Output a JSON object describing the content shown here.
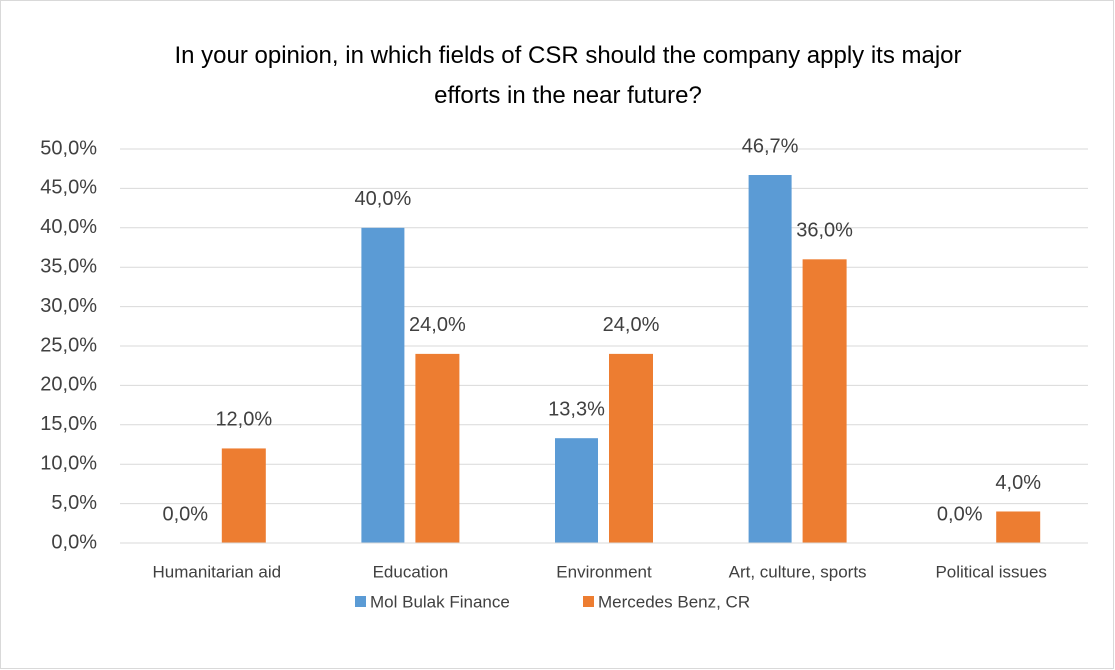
{
  "chart_data": {
    "type": "bar",
    "title": "In your opinion, in which fields of CSR should the company apply its major efforts in the near future?",
    "categories": [
      "Humanitarian aid",
      "Education",
      "Environment",
      "Art, culture, sports",
      "Political issues"
    ],
    "series": [
      {
        "name": "Mol Bulak Finance",
        "color": "#5b9bd5",
        "values": [
          0,
          40,
          13.3,
          46.7,
          0
        ],
        "value_labels": [
          "0,0%",
          "40,0%",
          "13,3%",
          "46,7%",
          "0,0%"
        ]
      },
      {
        "name": "Mercedes Benz, CR",
        "color": "#ed7d31",
        "values": [
          12,
          24,
          24,
          36,
          4
        ],
        "value_labels": [
          "12,0%",
          "24,0%",
          "24,0%",
          "36,0%",
          "4,0%"
        ]
      }
    ],
    "ylim": [
      0,
      50
    ],
    "yticks": [
      {
        "value": 0,
        "label": "0,0%"
      },
      {
        "value": 5,
        "label": "5,0%"
      },
      {
        "value": 10,
        "label": "10,0%"
      },
      {
        "value": 15,
        "label": "15,0%"
      },
      {
        "value": 20,
        "label": "20,0%"
      },
      {
        "value": 25,
        "label": "25,0%"
      },
      {
        "value": 30,
        "label": "30,0%"
      },
      {
        "value": 35,
        "label": "35,0%"
      },
      {
        "value": 40,
        "label": "40,0%"
      },
      {
        "value": 45,
        "label": "45,0%"
      },
      {
        "value": 50,
        "label": "50,0%"
      }
    ],
    "grid": true,
    "legend": "bottom"
  }
}
